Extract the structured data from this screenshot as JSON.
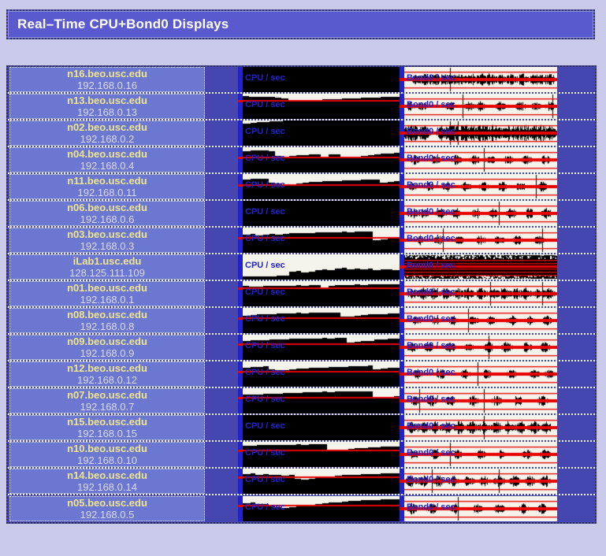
{
  "window": {
    "title": "Real–Time CPU+Bond0 Displays"
  },
  "charts": {
    "cpu_label": "CPU / sec",
    "bond_label": "Bond0 / sec"
  },
  "colors": {
    "page_bg": "#c9c9e9",
    "title_bg": "#5a5ace",
    "row_bg": "#4646b0",
    "host_panel_bg": "#6b77d0",
    "indicator_bar_blue": "#2323cd",
    "host_text_yellow": "#f0e68c",
    "ip_text_white": "#dcdcf2",
    "chart_label_blue": "#2222cc",
    "red_line": "#e80000",
    "cpu_chart_bg": "#000000",
    "cpu_chart_fg": "#f4f4ec",
    "bond_chart_bg": "#f4f4ec",
    "bond_chart_fg": "#000000"
  },
  "rows": [
    {
      "host": "n16.beo.usc.edu",
      "ip": "192.168.0.16",
      "cpu": {
        "values": [
          0,
          0,
          0,
          0,
          0,
          0,
          0,
          0,
          0,
          0,
          0,
          0,
          0,
          0,
          0,
          0,
          0,
          0,
          0,
          0,
          0,
          0,
          0,
          0
        ],
        "red": null
      },
      "bond": {
        "mode": "wave",
        "amp": 0.6,
        "bursts": [
          0.08,
          0.14,
          0.2,
          0.26,
          0.31,
          0.37,
          0.44,
          0.5,
          0.56,
          0.63,
          0.7,
          0.77,
          0.84,
          0.9,
          0.96
        ],
        "talls": [
          0.3
        ],
        "seed": 11
      }
    },
    {
      "host": "n13.beo.usc.edu",
      "ip": "192.168.0.13",
      "cpu": {
        "values": [
          0.1,
          0.12,
          0.11,
          0.13,
          0.14,
          0.16,
          0.2,
          0.28,
          0.3,
          0.27,
          0.25,
          0.24,
          0.23,
          0.22,
          0.21,
          0.2,
          0.19,
          0.18,
          0.17,
          0.16,
          0.15,
          0.14,
          0.13,
          0.12
        ],
        "red": 0.25
      },
      "bond": {
        "mode": "wave",
        "amp": 0.5,
        "bursts": [
          0.04,
          0.12,
          0.3,
          0.42,
          0.5,
          0.63,
          0.76,
          0.86,
          0.95
        ],
        "talls": [
          0.38,
          0.97
        ],
        "seed": 22
      }
    },
    {
      "host": "n02.beo.usc.edu",
      "ip": "192.168.0.2",
      "cpu": {
        "values": [
          0.12,
          0.09,
          0.07,
          0.05,
          0.03,
          0.02,
          0,
          0,
          0,
          0,
          0,
          0,
          0,
          0,
          0,
          0,
          0,
          0,
          0,
          0,
          0,
          0,
          0,
          0
        ],
        "red": null
      },
      "bond": {
        "mode": "wave",
        "amp": 0.8,
        "bursts": [
          0.02,
          0.07,
          0.13,
          0.25,
          0.3,
          0.35,
          0.4,
          0.45,
          0.5,
          0.55,
          0.6,
          0.67,
          0.73,
          0.79,
          0.85,
          0.9,
          0.96
        ],
        "talls": [
          0.3,
          0.35
        ],
        "seed": 33
      }
    },
    {
      "host": "n04.beo.usc.edu",
      "ip": "192.168.0.4",
      "cpu": {
        "values": [
          0.15,
          0.14,
          0.14,
          0.13,
          0.15,
          0.34,
          0.36,
          0.33,
          0.31,
          0.3,
          0.29,
          0.28,
          0.38,
          0.28,
          0.27,
          0.42,
          0.4,
          0.37,
          0.34,
          0.31,
          0.28,
          0.26,
          0.24,
          0.22
        ],
        "red": 0.38
      },
      "bond": {
        "mode": "wave",
        "amp": 0.5,
        "bursts": [
          0.07,
          0.2,
          0.34,
          0.46,
          0.56,
          0.68,
          0.8,
          0.92
        ],
        "talls": [
          0.52
        ],
        "seed": 44
      }
    },
    {
      "host": "n11.beo.usc.edu",
      "ip": "192.168.0.11",
      "cpu": {
        "values": [
          0.22,
          0.2,
          0.19,
          0.18,
          0.35,
          0.38,
          0.42,
          0.4,
          0.36,
          0.33,
          0.31,
          0.3,
          0.29,
          0.28,
          0.27,
          0.26,
          0.25,
          0.24,
          0.23,
          0.22,
          0.21,
          0.33,
          0.31,
          0.29
        ],
        "red": 0.42
      },
      "bond": {
        "mode": "wave",
        "amp": 0.5,
        "bursts": [
          0.05,
          0.16,
          0.28,
          0.4,
          0.52,
          0.64,
          0.76,
          0.9
        ],
        "talls": [
          0.86
        ],
        "seed": 55
      }
    },
    {
      "host": "n06.beo.usc.edu",
      "ip": "192.168.0.6",
      "cpu": {
        "values": [
          0,
          0,
          0,
          0,
          0,
          0,
          0,
          0,
          0,
          0,
          0,
          0,
          0,
          0,
          0,
          0,
          0,
          0,
          0,
          0,
          0,
          0,
          0,
          0
        ],
        "red": null
      },
      "bond": {
        "mode": "wave",
        "amp": 0.55,
        "bursts": [
          0.05,
          0.13,
          0.24,
          0.34,
          0.47,
          0.58,
          0.7,
          0.82,
          0.93
        ],
        "talls": [
          0.62
        ],
        "seed": 66
      }
    },
    {
      "host": "n03.beo.usc.edu",
      "ip": "192.168.0.3",
      "cpu": {
        "values": [
          0.28,
          0.26,
          0.3,
          0.27,
          0.25,
          0.28,
          0.24,
          0.23,
          0.22,
          0.21,
          0.22,
          0.2,
          0.19,
          0.2,
          0.18,
          0.17,
          0.18,
          0.16,
          0.15,
          0.16,
          0.5,
          0.46,
          0.42,
          0.4
        ],
        "red": 0.38
      },
      "bond": {
        "mode": "wave",
        "amp": 0.5,
        "bursts": [
          0.1,
          0.22,
          0.36,
          0.5,
          0.62,
          0.74,
          0.88
        ],
        "talls": [
          0.25,
          0.9
        ],
        "seed": 77
      }
    },
    {
      "host": "iLab1.usc.edu",
      "ip": "128.125.111.109",
      "cpu": {
        "values": [
          0.88,
          0.88,
          0.87,
          0.88,
          0.86,
          0.85,
          0.84,
          0.7,
          0.66,
          0.72,
          0.68,
          0.62,
          0.58,
          0.62,
          0.55,
          0.52,
          0.58,
          0.55,
          0.6,
          0.57,
          0.62,
          0.6,
          0.58,
          0.62
        ],
        "red": null
      },
      "bond": {
        "mode": "saturated",
        "amp": 1,
        "stripes": [
          0.21,
          0.33,
          0.57,
          0.69,
          0.8
        ],
        "thick_stripe": [
          0.44,
          0.52
        ],
        "seed": 88
      }
    },
    {
      "host": "n01.beo.usc.edu",
      "ip": "192.168.0.1",
      "cpu": {
        "values": [
          0.2,
          0.22,
          0.21,
          0.2,
          0.19,
          0.18,
          0.19,
          0.18,
          0.17,
          0.18,
          0.17,
          0.16,
          0.25,
          0.18,
          0.16,
          0.16,
          0.15,
          0.14,
          0.15,
          0.14,
          0.13,
          0.14,
          0.13,
          0.12
        ],
        "red": 0.25
      },
      "bond": {
        "mode": "wave",
        "amp": 0.6,
        "bursts": [
          0.05,
          0.12,
          0.19,
          0.27,
          0.35,
          0.42,
          0.5,
          0.58,
          0.65,
          0.73,
          0.8,
          0.88,
          0.95
        ],
        "talls": [
          0.56,
          0.9
        ],
        "seed": 99
      }
    },
    {
      "host": "n08.beo.usc.edu",
      "ip": "192.168.0.8",
      "cpu": {
        "values": [
          0.3,
          0.28,
          0.26,
          0.25,
          0.24,
          0.23,
          0.22,
          0.21,
          0.2,
          0.21,
          0.2,
          0.19,
          0.2,
          0.19,
          0.18,
          0.35,
          0.33,
          0.3,
          0.28,
          0.26,
          0.25,
          0.24,
          0.23,
          0.22
        ],
        "red": 0.36
      },
      "bond": {
        "mode": "wave",
        "amp": 0.5,
        "bursts": [
          0.08,
          0.2,
          0.32,
          0.45,
          0.57,
          0.7,
          0.82,
          0.93
        ],
        "talls": [
          0.42
        ],
        "seed": 101
      }
    },
    {
      "host": "n09.beo.usc.edu",
      "ip": "192.168.0.9",
      "cpu": {
        "values": [
          0.24,
          0.23,
          0.22,
          0.21,
          0.2,
          0.19,
          0.18,
          0.17,
          0.16,
          0.15,
          0.16,
          0.15,
          0.14,
          0.15,
          0.14,
          0.13,
          0.3,
          0.28,
          0.26,
          0.24,
          0.2,
          0.18,
          0.16,
          0.15
        ],
        "red": 0.33
      },
      "bond": {
        "mode": "wave",
        "amp": 0.55,
        "bursts": [
          0.05,
          0.16,
          0.3,
          0.42,
          0.55,
          0.67,
          0.8,
          0.92
        ],
        "talls": [
          0.55
        ],
        "seed": 111
      }
    },
    {
      "host": "n12.beo.usc.edu",
      "ip": "192.168.0.12",
      "cpu": {
        "values": [
          0.24,
          0.22,
          0.21,
          0.2,
          0.32,
          0.35,
          0.33,
          0.31,
          0.29,
          0.27,
          0.26,
          0.25,
          0.24,
          0.23,
          0.22,
          0.21,
          0.2,
          0.19,
          0.18,
          0.17,
          0.3,
          0.28,
          0.26,
          0.24
        ],
        "red": 0.36
      },
      "bond": {
        "mode": "wave",
        "amp": 0.5,
        "bursts": [
          0.09,
          0.24,
          0.4,
          0.54,
          0.7,
          0.85,
          0.95
        ],
        "talls": [
          0.48
        ],
        "seed": 121
      }
    },
    {
      "host": "n07.beo.usc.edu",
      "ip": "192.168.0.7",
      "cpu": {
        "values": [
          0.26,
          0.25,
          0.24,
          0.23,
          0.22,
          0.21,
          0.2,
          0.19,
          0.18,
          0.17,
          0.16,
          0.15,
          0.14,
          0.15,
          0.14,
          0.13,
          0.12,
          0.13,
          0.12,
          0.11,
          0.4,
          0.37,
          0.33,
          0.3
        ],
        "red": 0.33
      },
      "bond": {
        "mode": "wave",
        "amp": 0.55,
        "bursts": [
          0.07,
          0.18,
          0.3,
          0.45,
          0.6,
          0.74,
          0.9
        ],
        "talls": [
          0.1,
          0.52
        ],
        "seed": 131
      }
    },
    {
      "host": "n15.beo.usc.edu",
      "ip": "192.168.0.15",
      "cpu": {
        "values": [
          0,
          0,
          0,
          0,
          0,
          0,
          0,
          0,
          0,
          0,
          0,
          0,
          0,
          0,
          0,
          0,
          0,
          0,
          0,
          0,
          0,
          0,
          0,
          0
        ],
        "red": null
      },
      "bond": {
        "mode": "wave",
        "amp": 0.65,
        "bursts": [
          0.05,
          0.12,
          0.2,
          0.28,
          0.36,
          0.44,
          0.52,
          0.6,
          0.68,
          0.76,
          0.85,
          0.93
        ],
        "talls": [
          0.52
        ],
        "seed": 141
      }
    },
    {
      "host": "n10.beo.usc.edu",
      "ip": "192.168.0.10",
      "cpu": {
        "values": [
          0.16,
          0.15,
          0.14,
          0.13,
          0.12,
          0.11,
          0.12,
          0.11,
          0.1,
          0.11,
          0.1,
          0.09,
          0.1,
          0.35,
          0.33,
          0.3,
          0.28,
          0.26,
          0.24,
          0.22,
          0.21,
          0.2,
          0.19,
          0.18
        ],
        "red": 0.3
      },
      "bond": {
        "mode": "wave",
        "amp": 0.5,
        "bursts": [
          0.06,
          0.2,
          0.35,
          0.5,
          0.64,
          0.8,
          0.92
        ],
        "talls": [
          0.3
        ],
        "seed": 151
      }
    },
    {
      "host": "n14.beo.usc.edu",
      "ip": "192.168.0.14",
      "cpu": {
        "values": [
          0.22,
          0.2,
          0.24,
          0.22,
          0.26,
          0.24,
          0.28,
          0.26,
          0.42,
          0.45,
          0.4,
          0.36,
          0.33,
          0.3,
          0.28,
          0.26,
          0.25,
          0.24,
          0.23,
          0.22,
          0.21,
          0.2,
          0.19,
          0.18
        ],
        "red": 0.3
      },
      "bond": {
        "mode": "wave",
        "amp": 0.6,
        "bursts": [
          0.04,
          0.12,
          0.22,
          0.32,
          0.42,
          0.52,
          0.62,
          0.72,
          0.82,
          0.92
        ],
        "talls": [
          0.18,
          0.62
        ],
        "seed": 161
      }
    },
    {
      "host": "n05.beo.usc.edu",
      "ip": "192.168.0.5",
      "cpu": {
        "values": [
          0.28,
          0.26,
          0.3,
          0.32,
          0.35,
          0.45,
          0.48,
          0.44,
          0.4,
          0.36,
          0.33,
          0.3,
          0.28,
          0.26,
          0.24,
          0.22,
          0.2,
          0.18,
          0.17,
          0.16,
          0.15,
          0.14,
          0.13,
          0.12
        ],
        "red": 0.33
      },
      "bond": {
        "mode": "wave",
        "amp": 0.55,
        "bursts": [
          0.05,
          0.18,
          0.33,
          0.48,
          0.62,
          0.78,
          0.9
        ],
        "talls": [
          0.35
        ],
        "seed": 171
      }
    }
  ]
}
